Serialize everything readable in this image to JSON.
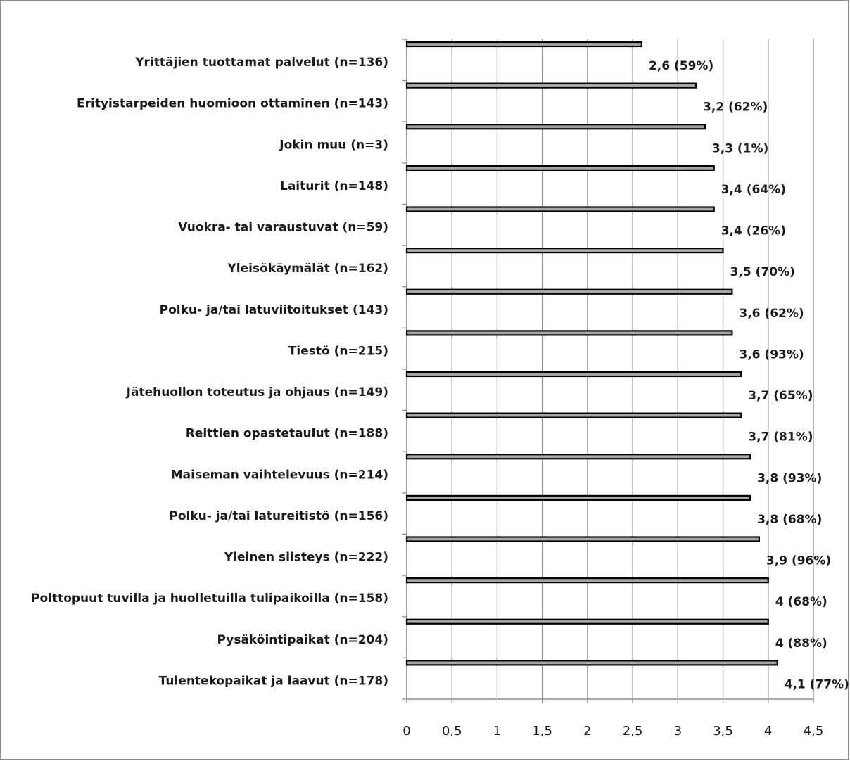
{
  "chart_data": {
    "type": "bar",
    "orientation": "horizontal",
    "categories": [
      "Yrittäjien tuottamat palvelut (n=136)",
      "Erityistarpeiden huomioon ottaminen (n=143)",
      "Jokin muu (n=3)",
      "Laiturit (n=148)",
      "Vuokra- tai varaustuvat (n=59)",
      "Yleisökäymälät (n=162)",
      "Polku- ja/tai latuviitoitukset (143)",
      "Tiestö (n=215)",
      "Jätehuollon toteutus ja ohjaus (n=149)",
      "Reittien opastetaulut (n=188)",
      "Maiseman vaihtelevuus (n=214)",
      "Polku- ja/tai latureitistö (n=156)",
      "Yleinen siisteys (n=222)",
      "Polttopuut tuvilla ja huolletuilla tulipaikoilla (n=158)",
      "Pysäköintipaikat (n=204)",
      "Tulentekopaikat ja laavut (n=178)"
    ],
    "values": [
      2.6,
      3.2,
      3.3,
      3.4,
      3.4,
      3.5,
      3.6,
      3.6,
      3.7,
      3.7,
      3.8,
      3.8,
      3.9,
      4,
      4,
      4.1
    ],
    "data_labels": [
      "2,6 (59%)",
      "3,2 (62%)",
      "3,3 (1%)",
      "3,4 (64%)",
      "3,4 (26%)",
      "3,5 (70%)",
      "3,6 (62%)",
      "3,6 (93%)",
      "3,7 (65%)",
      "3,7 (81%)",
      "3,8 (93%)",
      "3,8 (68%)",
      "3,9 (96%)",
      "4 (68%)",
      "4 (88%)",
      "4,1 (77%)"
    ],
    "x_ticks": [
      "0",
      "0,5",
      "1",
      "1,5",
      "2",
      "2,5",
      "3",
      "3,5",
      "4",
      "4,5"
    ],
    "xlim": [
      0,
      4.5
    ],
    "grid": true,
    "legend": false,
    "bar_color": "#a6a6a6",
    "bar_edge_color": "#000000",
    "grid_color": "#8c8c8c"
  }
}
